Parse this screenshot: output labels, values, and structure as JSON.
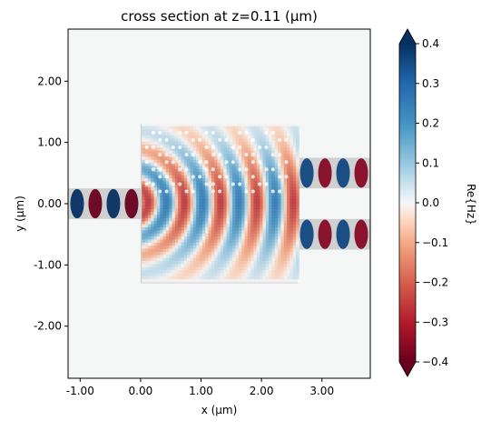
{
  "chart_data": {
    "type": "heatmap",
    "title": "cross section at z=0.11 (μm)",
    "xlabel": "x (μm)",
    "ylabel": "y (μm)",
    "colorbar_label": "Re{Hz}",
    "colormap": "RdBu",
    "xlim": [
      -1.2,
      3.8
    ],
    "ylim": [
      -2.85,
      2.85
    ],
    "clim": [
      -0.4,
      0.4
    ],
    "x_ticks": [
      -1.0,
      0.0,
      1.0,
      2.0,
      3.0
    ],
    "x_tick_labels": [
      "-1.00",
      "0.00",
      "1.00",
      "2.00",
      "3.00"
    ],
    "y_ticks": [
      2.0,
      1.0,
      0.0,
      -1.0,
      -2.0
    ],
    "y_tick_labels": [
      "2.00",
      "1.00",
      "0.00",
      "-1.00",
      "-2.00"
    ],
    "colorbar_ticks": [
      0.4,
      0.3,
      0.2,
      0.1,
      0.0,
      -0.1,
      -0.2,
      -0.3,
      -0.4
    ],
    "colorbar_tick_labels": [
      "0.4",
      "0.3",
      "0.2",
      "0.1",
      "0.0",
      "−0.1",
      "−0.2",
      "−0.3",
      "−0.4"
    ],
    "structures": [
      {
        "name": "input waveguide",
        "x": [
          -1.2,
          0.0
        ],
        "y": [
          -0.25,
          0.25
        ]
      },
      {
        "name": "design region",
        "x": [
          0.0,
          2.6
        ],
        "y": [
          -1.3,
          1.3
        ]
      },
      {
        "name": "output waveguide top",
        "x": [
          2.6,
          3.8
        ],
        "y": [
          0.25,
          0.75
        ]
      },
      {
        "name": "output waveguide bottom",
        "x": [
          2.6,
          3.8
        ],
        "y": [
          -0.75,
          -0.25
        ]
      }
    ],
    "input_mode": {
      "x_range": [
        -1.2,
        0.0
      ],
      "y_center": 0.0,
      "period": 0.6,
      "amplitude": 0.4
    },
    "output_modes": [
      {
        "x_range": [
          2.6,
          3.8
        ],
        "y_center": 0.5,
        "period": 0.6,
        "amplitude": 0.36
      },
      {
        "x_range": [
          2.6,
          3.8
        ],
        "y_center": -0.5,
        "period": 0.6,
        "amplitude": 0.36
      }
    ]
  }
}
